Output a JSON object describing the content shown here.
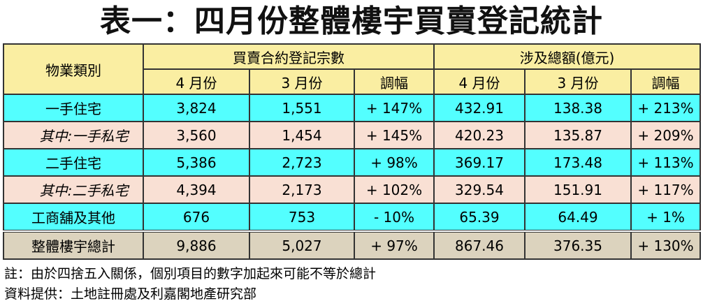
{
  "title": "表一：四月份整體樓宇買賣登記統計",
  "table": {
    "header": {
      "category": "物業類別",
      "group1": "買賣合約登記宗數",
      "group2": "涉及總額(億元)",
      "sub": [
        "4 月份",
        "3 月份",
        "調幅",
        "4 月份",
        "3 月份",
        "調幅"
      ]
    },
    "rows": [
      {
        "label": "一手住宅",
        "style": "cyan",
        "italic": false,
        "values": [
          "3,824",
          "1,551",
          "+ 147%",
          "432.91",
          "138.38",
          "+ 213%"
        ]
      },
      {
        "label": "其中:一手私宅",
        "style": "pink",
        "italic": true,
        "values": [
          "3,560",
          "1,454",
          "+ 145%",
          "420.23",
          "135.87",
          "+ 209%"
        ]
      },
      {
        "label": "二手住宅",
        "style": "cyan",
        "italic": false,
        "values": [
          "5,386",
          "2,723",
          "+ 98%",
          "369.17",
          "173.48",
          "+ 113%"
        ]
      },
      {
        "label": "其中:二手私宅",
        "style": "pink",
        "italic": true,
        "values": [
          "4,394",
          "2,173",
          "+ 102%",
          "329.54",
          "151.91",
          "+ 117%"
        ]
      },
      {
        "label": "工商舖及其他",
        "style": "cyan",
        "italic": false,
        "values": [
          "676",
          "753",
          "- 10%",
          "65.39",
          "64.49",
          "+ 1%"
        ]
      },
      {
        "label": "整體樓宇總計",
        "style": "total",
        "italic": false,
        "values": [
          "9,886",
          "5,027",
          "+ 97%",
          "867.46",
          "376.35",
          "+ 130%"
        ]
      }
    ]
  },
  "footnote": "註：由於四捨五入關係，個別項目的數字加起來可能不等於總計",
  "source": "資料提供：土地註冊處及利嘉閣地產研究部",
  "colors": {
    "header": "#faeea2",
    "cyan": "#53ffff",
    "pink": "#f9e0d4",
    "total": "#dcd3be"
  }
}
